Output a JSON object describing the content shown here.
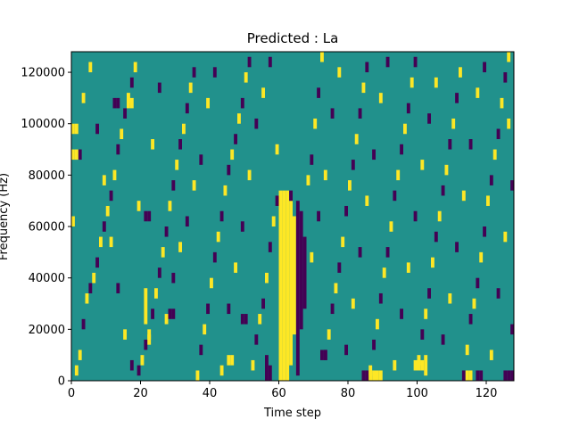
{
  "chart_data": {
    "type": "heatmap",
    "title": "Predicted : La",
    "xlabel": "Time step",
    "ylabel": "Frequency (Hz)",
    "xlim": [
      0,
      128
    ],
    "ylim": [
      0,
      128000
    ],
    "x_ticks": [
      0,
      20,
      40,
      60,
      80,
      100,
      120
    ],
    "y_ticks": [
      0,
      20000,
      40000,
      60000,
      80000,
      100000,
      120000
    ],
    "x_tick_labels": [
      "0",
      "20",
      "40",
      "60",
      "80",
      "100",
      "120"
    ],
    "y_tick_labels": [
      "0",
      "20000",
      "40000",
      "60000",
      "80000",
      "100000",
      "120000"
    ],
    "n_time_steps": 128,
    "n_freq_bins": 64,
    "bin_height_hz": 2000,
    "colormap": {
      "background": "#21918c",
      "high": "#fde725",
      "low": "#440154"
    },
    "grid": false,
    "legend": "none",
    "background_value": 0,
    "cells": [
      {
        "x": 60,
        "y_start": 0,
        "y_end": 74000,
        "value": 1
      },
      {
        "x": 61,
        "y_start": 0,
        "y_end": 74000,
        "value": 1
      },
      {
        "x": 62,
        "y_start": 0,
        "y_end": 74000,
        "value": 1
      },
      {
        "x": 63,
        "y_start": 6000,
        "y_end": 70000,
        "value": 1
      },
      {
        "x": 64,
        "y_start": 18000,
        "y_end": 64000,
        "value": 1
      },
      {
        "x": 63,
        "y_start": 70000,
        "y_end": 74000,
        "value": -1
      },
      {
        "x": 65,
        "y_start": 2000,
        "y_end": 70000,
        "value": -1
      },
      {
        "x": 66,
        "y_start": 20000,
        "y_end": 66000,
        "value": -1
      },
      {
        "x": 67,
        "y_start": 28000,
        "y_end": 56000,
        "value": -1
      },
      {
        "x": 56,
        "y_start": 0,
        "y_end": 10000,
        "value": -1
      },
      {
        "x": 57,
        "y_start": 0,
        "y_end": 6000,
        "value": -1
      },
      {
        "x": 84,
        "y_start": 0,
        "y_end": 4000,
        "value": -1
      },
      {
        "x": 85,
        "y_start": 0,
        "y_end": 4000,
        "value": -1
      },
      {
        "x": 86,
        "y_start": 0,
        "y_end": 4000,
        "value": 1
      },
      {
        "x": 87,
        "y_start": 0,
        "y_end": 4000,
        "value": 1
      },
      {
        "x": 88,
        "y_start": 0,
        "y_end": 4000,
        "value": 1
      },
      {
        "x": 89,
        "y_start": 0,
        "y_end": 4000,
        "value": 1
      },
      {
        "x": 99,
        "y_start": 4000,
        "y_end": 8000,
        "value": 1
      },
      {
        "x": 100,
        "y_start": 4000,
        "y_end": 8000,
        "value": 1
      },
      {
        "x": 101,
        "y_start": 4000,
        "y_end": 8000,
        "value": 1
      },
      {
        "x": 102,
        "y_start": 2000,
        "y_end": 10000,
        "value": 1
      },
      {
        "x": 114,
        "y_start": 0,
        "y_end": 4000,
        "value": 1
      },
      {
        "x": 115,
        "y_start": 0,
        "y_end": 4000,
        "value": 1
      },
      {
        "x": 117,
        "y_start": 0,
        "y_end": 4000,
        "value": -1
      },
      {
        "x": 118,
        "y_start": 0,
        "y_end": 4000,
        "value": -1
      },
      {
        "x": 125,
        "y_start": 0,
        "y_end": 4000,
        "value": -1
      },
      {
        "x": 126,
        "y_start": 0,
        "y_end": 4000,
        "value": -1
      },
      {
        "x": 127,
        "y_start": 0,
        "y_end": 4000,
        "value": -1
      },
      {
        "x": 45,
        "y_start": 6000,
        "y_end": 10000,
        "value": 1
      },
      {
        "x": 46,
        "y_start": 6000,
        "y_end": 10000,
        "value": 1
      },
      {
        "x": 0,
        "y_start": 96000,
        "y_end": 100000,
        "value": 1
      },
      {
        "x": 1,
        "y_start": 96000,
        "y_end": 100000,
        "value": 1
      },
      {
        "x": 0,
        "y_start": 86000,
        "y_end": 90000,
        "value": 1
      },
      {
        "x": 1,
        "y_start": 86000,
        "y_end": 90000,
        "value": 1
      },
      {
        "x": 12,
        "y_start": 106000,
        "y_end": 110000,
        "value": -1
      },
      {
        "x": 13,
        "y_start": 106000,
        "y_end": 110000,
        "value": -1
      },
      {
        "x": 16,
        "y_start": 106000,
        "y_end": 110000,
        "value": 1
      },
      {
        "x": 17,
        "y_start": 106000,
        "y_end": 110000,
        "value": 1
      },
      {
        "x": 21,
        "y_start": 22000,
        "y_end": 36000,
        "value": 1
      },
      {
        "x": 22,
        "y_start": 14000,
        "y_end": 18000,
        "value": 1
      },
      {
        "x": 28,
        "y_start": 24000,
        "y_end": 28000,
        "value": -1
      },
      {
        "x": 29,
        "y_start": 24000,
        "y_end": 28000,
        "value": -1
      },
      {
        "x": 21,
        "y_start": 62000,
        "y_end": 66000,
        "value": -1
      },
      {
        "x": 22,
        "y_start": 62000,
        "y_end": 66000,
        "value": -1
      },
      {
        "x": 49,
        "y_start": 22000,
        "y_end": 26000,
        "value": -1
      },
      {
        "x": 50,
        "y_start": 22000,
        "y_end": 26000,
        "value": -1
      },
      {
        "x": 72,
        "y_start": 8000,
        "y_end": 12000,
        "value": -1
      },
      {
        "x": 73,
        "y_start": 8000,
        "y_end": 12000,
        "value": -1
      }
    ],
    "speckles": [
      [
        1,
        2,
        1
      ],
      [
        2,
        5,
        1
      ],
      [
        3,
        11,
        -1
      ],
      [
        4,
        16,
        1
      ],
      [
        5,
        18,
        -1
      ],
      [
        6,
        20,
        1
      ],
      [
        7,
        23,
        -1
      ],
      [
        8,
        27,
        1
      ],
      [
        9,
        30,
        -1
      ],
      [
        10,
        33,
        1
      ],
      [
        11,
        36,
        -1
      ],
      [
        12,
        40,
        1
      ],
      [
        13,
        45,
        -1
      ],
      [
        14,
        48,
        1
      ],
      [
        15,
        52,
        -1
      ],
      [
        16,
        55,
        1
      ],
      [
        17,
        58,
        -1
      ],
      [
        18,
        61,
        1
      ],
      [
        19,
        2,
        -1
      ],
      [
        20,
        4,
        1
      ],
      [
        21,
        7,
        -1
      ],
      [
        22,
        9,
        1
      ],
      [
        23,
        13,
        -1
      ],
      [
        24,
        17,
        1
      ],
      [
        25,
        21,
        -1
      ],
      [
        26,
        25,
        1
      ],
      [
        27,
        29,
        -1
      ],
      [
        28,
        34,
        1
      ],
      [
        29,
        38,
        -1
      ],
      [
        30,
        42,
        1
      ],
      [
        31,
        46,
        -1
      ],
      [
        32,
        49,
        1
      ],
      [
        33,
        53,
        -1
      ],
      [
        34,
        57,
        1
      ],
      [
        35,
        60,
        -1
      ],
      [
        36,
        1,
        1
      ],
      [
        37,
        6,
        -1
      ],
      [
        38,
        10,
        1
      ],
      [
        39,
        14,
        -1
      ],
      [
        40,
        19,
        1
      ],
      [
        41,
        24,
        -1
      ],
      [
        42,
        28,
        1
      ],
      [
        43,
        32,
        -1
      ],
      [
        44,
        37,
        1
      ],
      [
        45,
        41,
        -1
      ],
      [
        46,
        44,
        1
      ],
      [
        47,
        47,
        -1
      ],
      [
        48,
        51,
        1
      ],
      [
        49,
        54,
        -1
      ],
      [
        50,
        59,
        1
      ],
      [
        51,
        62,
        -1
      ],
      [
        52,
        3,
        1
      ],
      [
        53,
        8,
        -1
      ],
      [
        54,
        12,
        1
      ],
      [
        55,
        15,
        -1
      ],
      [
        56,
        20,
        1
      ],
      [
        57,
        26,
        -1
      ],
      [
        58,
        31,
        1
      ],
      [
        59,
        35,
        -1
      ],
      [
        68,
        39,
        1
      ],
      [
        69,
        43,
        -1
      ],
      [
        70,
        50,
        1
      ],
      [
        71,
        56,
        -1
      ],
      [
        72,
        63,
        1
      ],
      [
        73,
        5,
        -1
      ],
      [
        74,
        9,
        1
      ],
      [
        75,
        14,
        -1
      ],
      [
        76,
        18,
        1
      ],
      [
        77,
        22,
        -1
      ],
      [
        78,
        27,
        1
      ],
      [
        79,
        33,
        -1
      ],
      [
        80,
        38,
        1
      ],
      [
        81,
        42,
        -1
      ],
      [
        82,
        47,
        1
      ],
      [
        83,
        52,
        -1
      ],
      [
        84,
        57,
        1
      ],
      [
        85,
        61,
        -1
      ],
      [
        86,
        2,
        1
      ],
      [
        87,
        7,
        -1
      ],
      [
        88,
        11,
        1
      ],
      [
        89,
        16,
        -1
      ],
      [
        90,
        21,
        1
      ],
      [
        91,
        25,
        -1
      ],
      [
        92,
        30,
        1
      ],
      [
        93,
        36,
        -1
      ],
      [
        94,
        40,
        1
      ],
      [
        95,
        45,
        -1
      ],
      [
        96,
        49,
        1
      ],
      [
        97,
        53,
        -1
      ],
      [
        98,
        58,
        1
      ],
      [
        99,
        62,
        -1
      ],
      [
        100,
        4,
        1
      ],
      [
        101,
        9,
        -1
      ],
      [
        102,
        13,
        1
      ],
      [
        103,
        17,
        -1
      ],
      [
        104,
        23,
        1
      ],
      [
        105,
        28,
        -1
      ],
      [
        106,
        32,
        1
      ],
      [
        107,
        37,
        -1
      ],
      [
        108,
        41,
        1
      ],
      [
        109,
        46,
        -1
      ],
      [
        110,
        50,
        1
      ],
      [
        111,
        55,
        -1
      ],
      [
        112,
        60,
        1
      ],
      [
        113,
        1,
        -1
      ],
      [
        114,
        6,
        1
      ],
      [
        115,
        12,
        -1
      ],
      [
        116,
        15,
        1
      ],
      [
        117,
        19,
        -1
      ],
      [
        118,
        24,
        1
      ],
      [
        119,
        29,
        -1
      ],
      [
        120,
        35,
        1
      ],
      [
        121,
        39,
        -1
      ],
      [
        122,
        44,
        1
      ],
      [
        123,
        48,
        -1
      ],
      [
        124,
        54,
        1
      ],
      [
        125,
        59,
        -1
      ],
      [
        126,
        63,
        1
      ],
      [
        127,
        10,
        -1
      ],
      [
        0,
        31,
        1
      ],
      [
        2,
        44,
        -1
      ],
      [
        3,
        55,
        1
      ],
      [
        5,
        61,
        1
      ],
      [
        7,
        49,
        -1
      ],
      [
        9,
        39,
        1
      ],
      [
        11,
        27,
        1
      ],
      [
        13,
        18,
        -1
      ],
      [
        15,
        9,
        1
      ],
      [
        17,
        3,
        -1
      ],
      [
        19,
        34,
        1
      ],
      [
        23,
        46,
        1
      ],
      [
        25,
        57,
        -1
      ],
      [
        27,
        12,
        1
      ],
      [
        29,
        20,
        -1
      ],
      [
        31,
        26,
        1
      ],
      [
        33,
        31,
        -1
      ],
      [
        35,
        38,
        1
      ],
      [
        37,
        43,
        -1
      ],
      [
        39,
        54,
        1
      ],
      [
        41,
        60,
        -1
      ],
      [
        43,
        2,
        1
      ],
      [
        45,
        14,
        -1
      ],
      [
        47,
        22,
        1
      ],
      [
        49,
        30,
        -1
      ],
      [
        51,
        40,
        1
      ],
      [
        53,
        50,
        -1
      ],
      [
        55,
        56,
        1
      ],
      [
        57,
        62,
        -1
      ],
      [
        59,
        45,
        1
      ],
      [
        69,
        24,
        1
      ],
      [
        71,
        32,
        -1
      ],
      [
        73,
        40,
        1
      ],
      [
        75,
        52,
        -1
      ],
      [
        77,
        60,
        1
      ],
      [
        79,
        6,
        -1
      ],
      [
        81,
        15,
        1
      ],
      [
        83,
        25,
        -1
      ],
      [
        85,
        35,
        1
      ],
      [
        87,
        44,
        -1
      ],
      [
        89,
        55,
        1
      ],
      [
        91,
        62,
        -1
      ],
      [
        93,
        3,
        1
      ],
      [
        95,
        13,
        -1
      ],
      [
        97,
        22,
        1
      ],
      [
        99,
        32,
        -1
      ],
      [
        101,
        42,
        1
      ],
      [
        103,
        51,
        -1
      ],
      [
        105,
        58,
        1
      ],
      [
        107,
        8,
        -1
      ],
      [
        109,
        16,
        1
      ],
      [
        111,
        26,
        -1
      ],
      [
        113,
        36,
        1
      ],
      [
        115,
        46,
        -1
      ],
      [
        117,
        56,
        1
      ],
      [
        119,
        61,
        -1
      ],
      [
        121,
        5,
        1
      ],
      [
        123,
        17,
        -1
      ],
      [
        125,
        28,
        1
      ],
      [
        127,
        38,
        -1
      ],
      [
        126,
        50,
        1
      ]
    ]
  }
}
